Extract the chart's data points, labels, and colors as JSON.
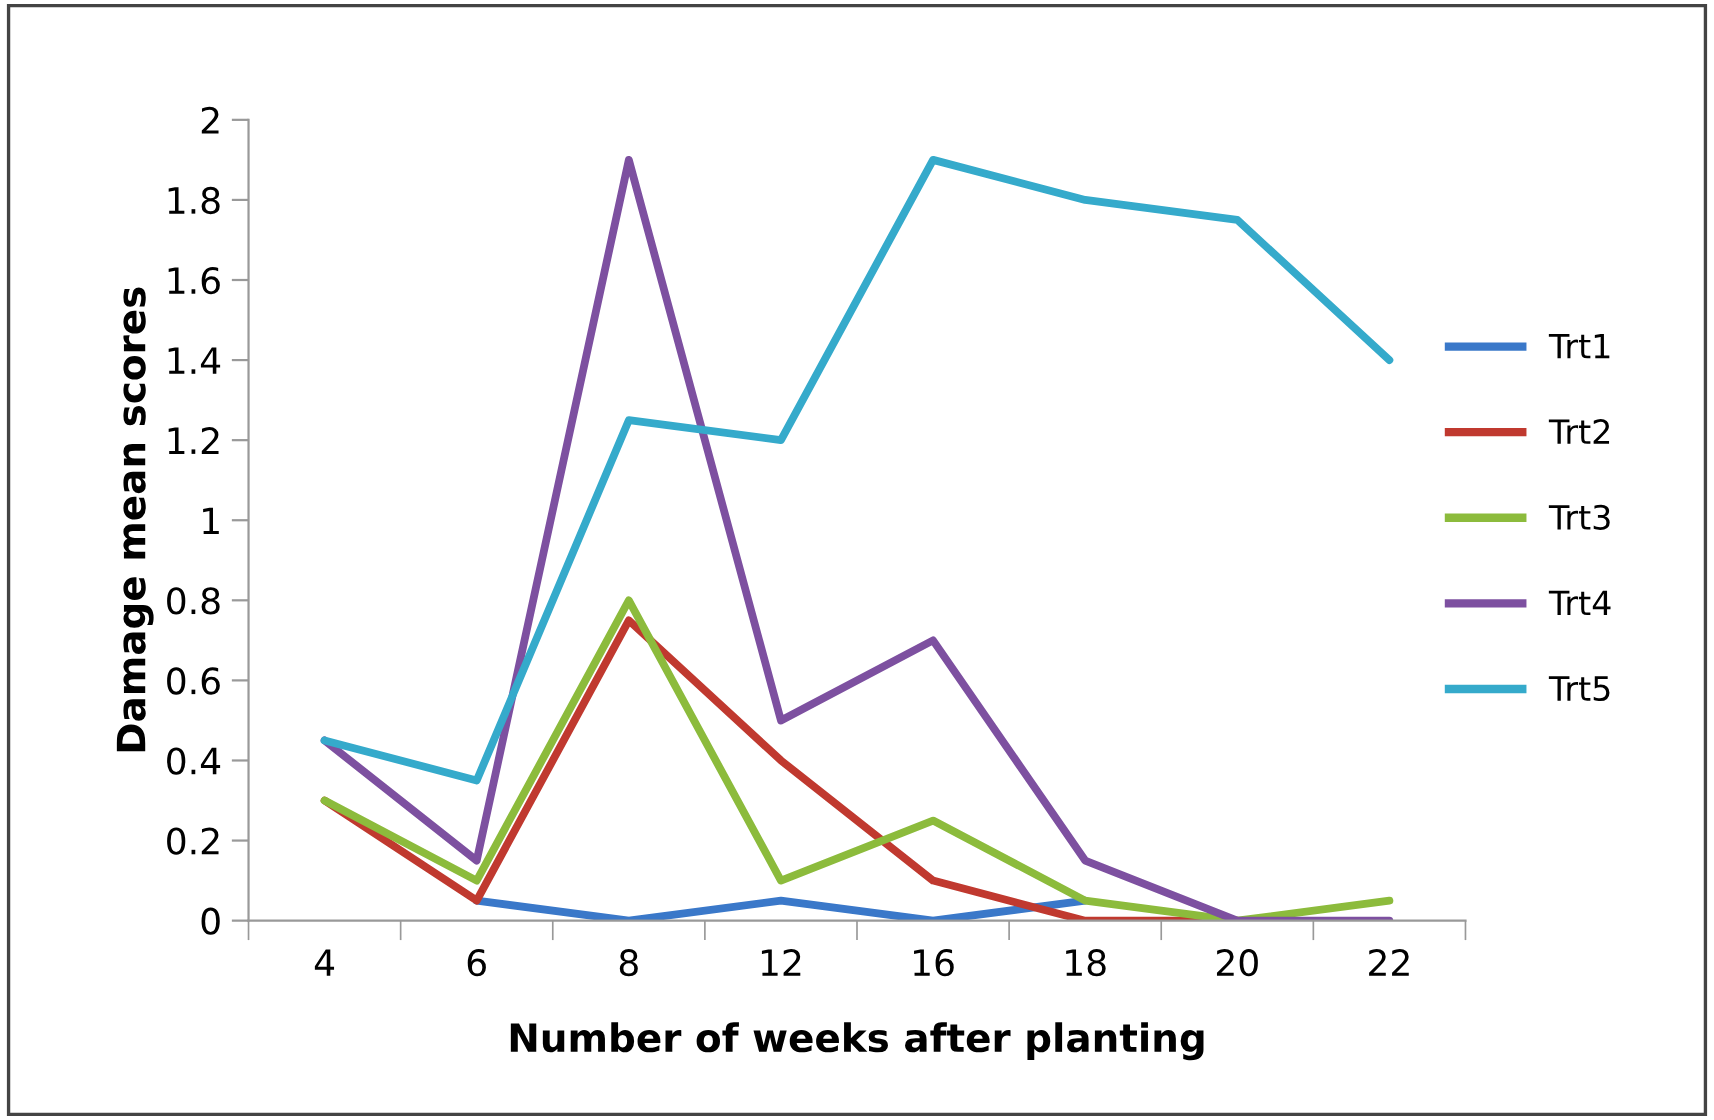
{
  "chart_data": {
    "type": "line",
    "xlabel": "Number of weeks after planting",
    "ylabel": "Damage mean scores",
    "categories": [
      "4",
      "6",
      "8",
      "12",
      "16",
      "18",
      "20",
      "22"
    ],
    "series": [
      {
        "name": "Trt1",
        "color": "#3a78c9",
        "values": [
          null,
          0.05,
          0,
          0.05,
          0,
          0.05,
          null,
          null
        ]
      },
      {
        "name": "Trt2",
        "color": "#c0392f",
        "values": [
          0.3,
          0.05,
          0.75,
          0.4,
          0.1,
          0,
          0,
          null
        ]
      },
      {
        "name": "Trt3",
        "color": "#8cbb3c",
        "values": [
          0.3,
          0.1,
          0.8,
          0.1,
          0.25,
          0.05,
          0,
          0.05
        ]
      },
      {
        "name": "Trt4",
        "color": "#7d50a0",
        "values": [
          0.45,
          0.15,
          1.9,
          0.5,
          0.7,
          0.15,
          0,
          0
        ]
      },
      {
        "name": "Trt5",
        "color": "#35aacb",
        "values": [
          0.45,
          0.35,
          1.25,
          1.2,
          1.9,
          1.8,
          1.75,
          1.4
        ]
      }
    ],
    "ylim": [
      0,
      2
    ],
    "yticks": [
      0,
      0.2,
      0.4,
      0.6,
      0.8,
      1,
      1.2,
      1.4,
      1.6,
      1.8,
      2
    ],
    "grid": false,
    "legend": "right",
    "marker": "none",
    "line_style": "solid"
  }
}
